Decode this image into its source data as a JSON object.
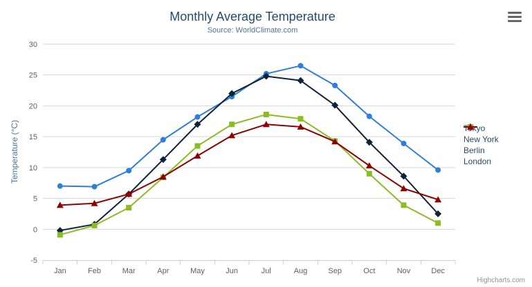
{
  "chart_data": {
    "type": "line",
    "title": "Monthly Average Temperature",
    "subtitle": "Source: WorldClimate.com",
    "xlabel": "",
    "ylabel": "Temperature (°C)",
    "categories": [
      "Jan",
      "Feb",
      "Mar",
      "Apr",
      "May",
      "Jun",
      "Jul",
      "Aug",
      "Sep",
      "Oct",
      "Nov",
      "Dec"
    ],
    "ylim": [
      -5,
      30
    ],
    "ytick_interval": 5,
    "grid": true,
    "legend_position": "right",
    "series": [
      {
        "name": "Tokyo",
        "color": "#2f7ed8",
        "marker": "circle",
        "values": [
          7.0,
          6.9,
          9.5,
          14.5,
          18.2,
          21.5,
          25.2,
          26.5,
          23.3,
          18.3,
          13.9,
          9.6
        ]
      },
      {
        "name": "New York",
        "color": "#0d233a",
        "marker": "diamond",
        "values": [
          -0.2,
          0.8,
          5.7,
          11.3,
          17.0,
          22.0,
          24.8,
          24.1,
          20.1,
          14.1,
          8.6,
          2.5
        ]
      },
      {
        "name": "Berlin",
        "color": "#8bbc21",
        "marker": "square",
        "values": [
          -0.9,
          0.6,
          3.5,
          8.4,
          13.5,
          17.0,
          18.6,
          17.9,
          14.3,
          9.0,
          3.9,
          1.0
        ]
      },
      {
        "name": "London",
        "color": "#910000",
        "marker": "triangle",
        "values": [
          3.9,
          4.2,
          5.7,
          8.5,
          11.9,
          15.2,
          17.0,
          16.6,
          14.2,
          10.3,
          6.6,
          4.8
        ]
      }
    ],
    "colors": {
      "title": "#274b6d",
      "subtitle": "#4d759e",
      "axis_title": "#4d759e",
      "axis_labels": "#606060",
      "grid_line": "#d8d8d8",
      "axis_line": "#c0d0e0",
      "legend_text": "#274b6d",
      "credits_text": "#909090"
    }
  },
  "export_menu": {
    "icon": "hamburger-icon"
  },
  "credits": "Highcharts.com"
}
